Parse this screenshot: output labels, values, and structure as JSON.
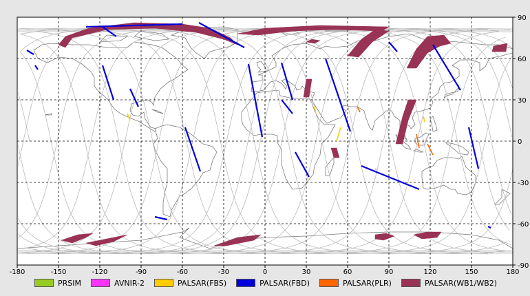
{
  "map": {
    "lon_ticks": [
      -180,
      -150,
      -120,
      -90,
      -60,
      -30,
      0,
      30,
      60,
      90,
      120,
      150,
      180
    ],
    "lat_ticks": [
      90,
      60,
      30,
      0,
      -30,
      -60,
      -90
    ],
    "lon_range": [
      -180,
      180
    ],
    "lat_range": [
      -90,
      90
    ],
    "grid": "dashed",
    "orbit_color": "#b9b9b9",
    "coast_color": "#7a7a7a",
    "land_fill": "#ffffff",
    "background": "#ffffff"
  },
  "legend": {
    "placement": "bottom",
    "items": [
      {
        "label": "PRSIM",
        "color": "#99cc22"
      },
      {
        "label": "AVNIR-2",
        "color": "#ff33ff"
      },
      {
        "label": "PALSAR(FBS)",
        "color": "#ffcc00"
      },
      {
        "label": "PALSAR(FBD)",
        "color": "#0000dd"
      },
      {
        "label": "PALSAR(PLR)",
        "color": "#ff6600"
      },
      {
        "label": "PALSAR(WB1/WB2)",
        "color": "#993355"
      }
    ]
  },
  "observations": {
    "wb": [
      {
        "poly": [
          [
            -150,
            70
          ],
          [
            -145,
            76
          ],
          [
            -128,
            82
          ],
          [
            -95,
            86
          ],
          [
            -60,
            85
          ],
          [
            -40,
            82
          ],
          [
            -25,
            75
          ],
          [
            -20,
            70
          ],
          [
            -30,
            74
          ],
          [
            -50,
            79
          ],
          [
            -80,
            82
          ],
          [
            -115,
            81
          ],
          [
            -140,
            75
          ],
          [
            -145,
            68
          ]
        ]
      },
      {
        "poly": [
          [
            -20,
            78
          ],
          [
            0,
            82
          ],
          [
            40,
            84
          ],
          [
            90,
            83
          ],
          [
            85,
            80
          ],
          [
            50,
            81
          ],
          [
            20,
            80
          ],
          [
            -5,
            77
          ]
        ]
      },
      {
        "poly": [
          [
            60,
            62
          ],
          [
            70,
            74
          ],
          [
            80,
            81
          ],
          [
            90,
            80
          ],
          [
            78,
            72
          ],
          [
            68,
            61
          ]
        ]
      },
      {
        "poly": [
          [
            103,
            53
          ],
          [
            110,
            67
          ],
          [
            118,
            76
          ],
          [
            130,
            77
          ],
          [
            135,
            71
          ],
          [
            127,
            69
          ],
          [
            118,
            64
          ],
          [
            110,
            53
          ]
        ]
      },
      {
        "poly": [
          [
            95,
            -2
          ],
          [
            100,
            18
          ],
          [
            104,
            30
          ],
          [
            110,
            30
          ],
          [
            104,
            15
          ],
          [
            100,
            -2
          ]
        ]
      },
      {
        "poly": [
          [
            48,
            -5
          ],
          [
            50,
            -12
          ],
          [
            54,
            -12
          ],
          [
            52,
            -5
          ]
        ]
      },
      {
        "poly": [
          [
            28,
            32
          ],
          [
            30,
            45
          ],
          [
            34,
            45
          ],
          [
            32,
            32
          ]
        ]
      },
      {
        "poly": [
          [
            165,
            65
          ],
          [
            166,
            69
          ],
          [
            176,
            71
          ],
          [
            175,
            65
          ]
        ]
      },
      {
        "poly": [
          [
            30,
            72
          ],
          [
            34,
            74
          ],
          [
            40,
            73
          ],
          [
            36,
            71
          ]
        ]
      },
      {
        "poly": [
          [
            -148,
            -72
          ],
          [
            -136,
            -68
          ],
          [
            -125,
            -67
          ],
          [
            -130,
            -70
          ],
          [
            -140,
            -74
          ]
        ]
      },
      {
        "poly": [
          [
            -130,
            -74
          ],
          [
            -110,
            -70
          ],
          [
            -100,
            -68
          ],
          [
            -110,
            -73
          ],
          [
            -123,
            -76
          ]
        ]
      },
      {
        "poly": [
          [
            -37,
            -76
          ],
          [
            -20,
            -70
          ],
          [
            -3,
            -68
          ],
          [
            -8,
            -72
          ],
          [
            -28,
            -76
          ]
        ]
      },
      {
        "poly": [
          [
            80,
            -68
          ],
          [
            88,
            -67
          ],
          [
            94,
            -69
          ],
          [
            86,
            -72
          ],
          [
            80,
            -71
          ]
        ]
      },
      {
        "poly": [
          [
            108,
            -68
          ],
          [
            118,
            -66
          ],
          [
            128,
            -66
          ],
          [
            125,
            -70
          ],
          [
            114,
            -71
          ]
        ]
      }
    ],
    "fbd": [
      {
        "pts": [
          [
            -118,
            55
          ],
          [
            -110,
            30
          ]
        ]
      },
      {
        "pts": [
          [
            -98,
            38
          ],
          [
            -92,
            25
          ]
        ]
      },
      {
        "pts": [
          [
            -58,
            10
          ],
          [
            -47,
            -22
          ]
        ]
      },
      {
        "pts": [
          [
            -12,
            56
          ],
          [
            -2,
            3
          ]
        ]
      },
      {
        "pts": [
          [
            12,
            57
          ],
          [
            20,
            30
          ]
        ]
      },
      {
        "pts": [
          [
            44,
            60
          ],
          [
            62,
            7
          ]
        ]
      },
      {
        "pts": [
          [
            22,
            -8
          ],
          [
            32,
            -26
          ]
        ]
      },
      {
        "pts": [
          [
            122,
            70
          ],
          [
            142,
            37
          ]
        ]
      },
      {
        "pts": [
          [
            -48,
            86
          ],
          [
            -15,
            68
          ]
        ]
      },
      {
        "pts": [
          [
            -130,
            83
          ],
          [
            -60,
            85
          ]
        ]
      },
      {
        "pts": [
          [
            70,
            -18
          ],
          [
            112,
            -35
          ]
        ]
      },
      {
        "pts": [
          [
            148,
            10
          ],
          [
            155,
            -20
          ]
        ]
      },
      {
        "pts": [
          [
            162,
            -62
          ],
          [
            164,
            -63
          ]
        ]
      },
      {
        "pts": [
          [
            -173,
            66
          ],
          [
            -168,
            63
          ]
        ]
      },
      {
        "pts": [
          [
            -167,
            55
          ],
          [
            -165,
            52
          ]
        ]
      },
      {
        "pts": [
          [
            -118,
            83
          ],
          [
            -108,
            76
          ]
        ]
      },
      {
        "pts": [
          [
            -80,
            -55
          ],
          [
            -71,
            -57
          ]
        ]
      },
      {
        "pts": [
          [
            90,
            72
          ],
          [
            96,
            65
          ]
        ]
      },
      {
        "pts": [
          [
            12,
            30
          ],
          [
            20,
            20
          ]
        ]
      }
    ],
    "fbs": [
      {
        "pts": [
          [
            -100,
            20
          ],
          [
            -98,
            15
          ]
        ]
      },
      {
        "pts": [
          [
            36,
            25
          ],
          [
            37,
            20
          ]
        ]
      },
      {
        "pts": [
          [
            115,
            18
          ],
          [
            116,
            14
          ]
        ]
      },
      {
        "pts": [
          [
            55,
            10
          ],
          [
            52,
            0
          ]
        ]
      }
    ],
    "plr": [
      {
        "pts": [
          [
            67,
            25
          ],
          [
            69,
            21
          ]
        ]
      },
      {
        "pts": [
          [
            118,
            -2
          ],
          [
            122,
            -10
          ]
        ]
      },
      {
        "pts": [
          [
            110,
            5
          ],
          [
            112,
            -5
          ]
        ]
      }
    ]
  }
}
